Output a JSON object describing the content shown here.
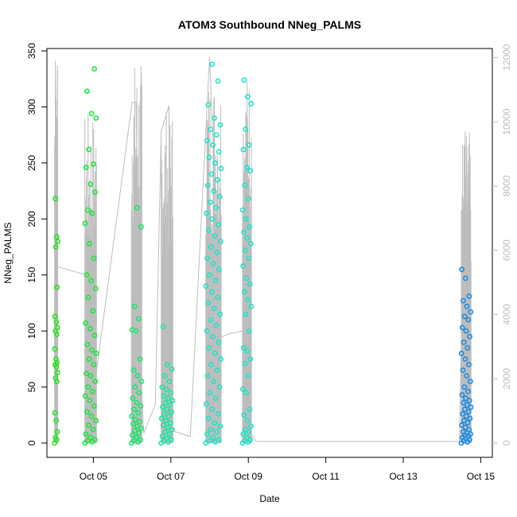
{
  "chart_data": {
    "type": "scatter",
    "title": "ATOM3 Southbound NNeg_PALMS",
    "xlabel": "Date",
    "ylabel": "NNeg_PALMS",
    "x_ticks": [
      "Oct 05",
      "Oct 07",
      "Oct 09",
      "Oct 11",
      "Oct 13",
      "Oct 15"
    ],
    "x_tick_days": [
      5,
      7,
      9,
      11,
      13,
      15
    ],
    "xlim": [
      3.8,
      15.3
    ],
    "y_ticks": [
      0,
      50,
      100,
      150,
      200,
      250,
      300,
      350
    ],
    "ylim": [
      0,
      350
    ],
    "y2_ticks": [
      0,
      2000,
      4000,
      6000,
      8000,
      10000,
      12000
    ],
    "y2lim": [
      0,
      12600
    ],
    "colors": {
      "flight1": "#22e61a",
      "flight2": "#1ae63c",
      "flight3": "#1ae66a",
      "flight4": "#1ae6a4",
      "flight5": "#1ae6c8",
      "flight6": "#1a8ce6",
      "altitude_line": "#bdbdbd"
    },
    "series": [
      {
        "flight": "flight1",
        "day_range": [
          4.0,
          4.08
        ],
        "values": [
          0,
          3,
          5,
          10,
          20,
          27,
          55,
          58,
          63,
          68,
          70,
          72,
          75,
          84,
          97,
          100,
          103,
          108,
          113,
          139,
          175,
          180,
          184,
          218
        ]
      },
      {
        "flight": "flight2",
        "day_range": [
          4.78,
          5.08
        ],
        "values": [
          0,
          1,
          2,
          3,
          5,
          8,
          12,
          16,
          20,
          24,
          28,
          33,
          38,
          42,
          46,
          50,
          55,
          60,
          62,
          70,
          75,
          80,
          83,
          88,
          96,
          102,
          107,
          118,
          130,
          138,
          145,
          150,
          165,
          178,
          196,
          205,
          208,
          224,
          231,
          246,
          249,
          262,
          290,
          294,
          314,
          334
        ]
      },
      {
        "flight": "flight3",
        "day_range": [
          5.98,
          6.25
        ],
        "values": [
          0,
          1,
          2,
          3,
          5,
          7,
          9,
          11,
          13,
          15,
          17,
          19,
          21,
          24,
          27,
          30,
          33,
          36,
          40,
          45,
          50,
          55,
          60,
          65,
          75,
          100,
          101,
          111,
          122,
          193,
          210
        ]
      },
      {
        "flight": "flight4",
        "day_range": [
          6.75,
          7.05
        ],
        "values": [
          0,
          1,
          2,
          3,
          4,
          6,
          8,
          10,
          12,
          14,
          16,
          18,
          20,
          22,
          24,
          26,
          28,
          30,
          32,
          34,
          36,
          38,
          40,
          42,
          45,
          48,
          50,
          55,
          60,
          66,
          70,
          104
        ]
      },
      {
        "flight": "flight5",
        "day_range": [
          7.9,
          8.3
        ],
        "values": [
          0,
          1,
          2,
          3,
          5,
          8,
          10,
          12,
          15,
          18,
          22,
          26,
          30,
          35,
          40,
          45,
          50,
          55,
          60,
          65,
          70,
          75,
          80,
          85,
          90,
          95,
          100,
          105,
          110,
          115,
          120,
          125,
          130,
          135,
          140,
          145,
          150,
          155,
          160,
          165,
          170,
          175,
          180,
          185,
          190,
          195,
          200,
          205,
          210,
          215,
          220,
          225,
          230,
          235,
          240,
          245,
          250,
          255,
          260,
          266,
          270,
          275,
          280,
          284,
          290,
          302,
          323,
          338
        ]
      },
      {
        "flight": "flight5",
        "day_range": [
          8.85,
          9.08
        ],
        "values": [
          0,
          1,
          2,
          3,
          5,
          8,
          10,
          12,
          15,
          20,
          25,
          30,
          45,
          48,
          60,
          71,
          75,
          82,
          85,
          100,
          115,
          122,
          128,
          135,
          142,
          147,
          158,
          165,
          172,
          178,
          183,
          188,
          193,
          200,
          208,
          218,
          230,
          243,
          246,
          262,
          266,
          280,
          303,
          309,
          324
        ]
      },
      {
        "flight": "flight6",
        "day_range": [
          14.5,
          14.75
        ],
        "values": [
          0,
          1,
          2,
          3,
          4,
          5,
          6,
          7,
          8,
          9,
          10,
          12,
          14,
          16,
          18,
          20,
          22,
          24,
          26,
          28,
          30,
          32,
          34,
          36,
          38,
          40,
          43,
          46,
          50,
          55,
          60,
          65,
          70,
          75,
          80,
          85,
          90,
          95,
          100,
          103,
          110,
          113,
          117,
          122,
          127,
          131,
          147,
          155
        ]
      }
    ],
    "altitude_line": {
      "axis": "right",
      "points": [
        [
          4.0,
          1800
        ],
        [
          4.02,
          11900
        ],
        [
          4.04,
          5500
        ],
        [
          4.9,
          5200
        ],
        [
          4.95,
          1200
        ],
        [
          5.0,
          1500
        ],
        [
          6.0,
          10600
        ],
        [
          6.1,
          10600
        ],
        [
          6.2,
          2700
        ],
        [
          6.3,
          300
        ],
        [
          6.6,
          1200
        ],
        [
          6.75,
          9700
        ],
        [
          6.95,
          10500
        ],
        [
          7.0,
          400
        ],
        [
          7.5,
          200
        ],
        [
          8.0,
          12000
        ],
        [
          8.3,
          3300
        ],
        [
          8.5,
          3400
        ],
        [
          8.9,
          3500
        ],
        [
          9.0,
          400
        ],
        [
          9.2,
          50
        ],
        [
          14.45,
          50
        ],
        [
          14.6,
          9700
        ]
      ]
    }
  }
}
